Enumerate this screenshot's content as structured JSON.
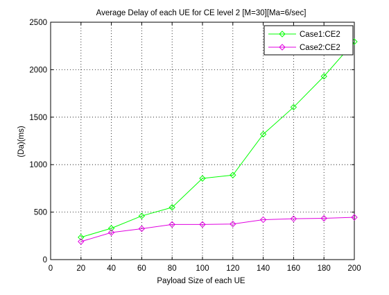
{
  "chart_data": {
    "type": "line",
    "title": "Average Delay of each UE for CE level 2 [M=30][Ma=6/sec]",
    "xlabel": "Payload Size of each UE",
    "ylabel": "(Da)(ms)",
    "xlim": [
      0,
      200
    ],
    "ylim": [
      0,
      2500
    ],
    "xticks": [
      0,
      20,
      40,
      60,
      80,
      100,
      120,
      140,
      160,
      180,
      200
    ],
    "yticks": [
      0,
      500,
      1000,
      1500,
      2000,
      2500
    ],
    "grid": true,
    "grid_style": "dotted",
    "legend_position": "top-right",
    "x": [
      20,
      40,
      60,
      80,
      100,
      120,
      140,
      160,
      180,
      200
    ],
    "series": [
      {
        "name": "Case1:CE2",
        "color": "#00ff00",
        "marker": "diamond",
        "values": [
          235,
          330,
          460,
          550,
          855,
          890,
          1320,
          1605,
          1930,
          2295
        ]
      },
      {
        "name": "Case2:CE2",
        "color": "#e000e0",
        "marker": "diamond",
        "values": [
          190,
          285,
          325,
          370,
          370,
          375,
          420,
          430,
          435,
          445
        ]
      }
    ]
  }
}
